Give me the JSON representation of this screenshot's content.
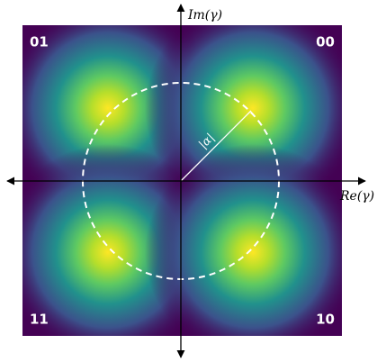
{
  "quadrants": {
    "top_left": "01",
    "top_right": "00",
    "bottom_left": "11",
    "bottom_right": "10"
  },
  "axes": {
    "imaginary": "Im(γ)",
    "real": "Re(γ)"
  },
  "radius_label": "|α|"
}
